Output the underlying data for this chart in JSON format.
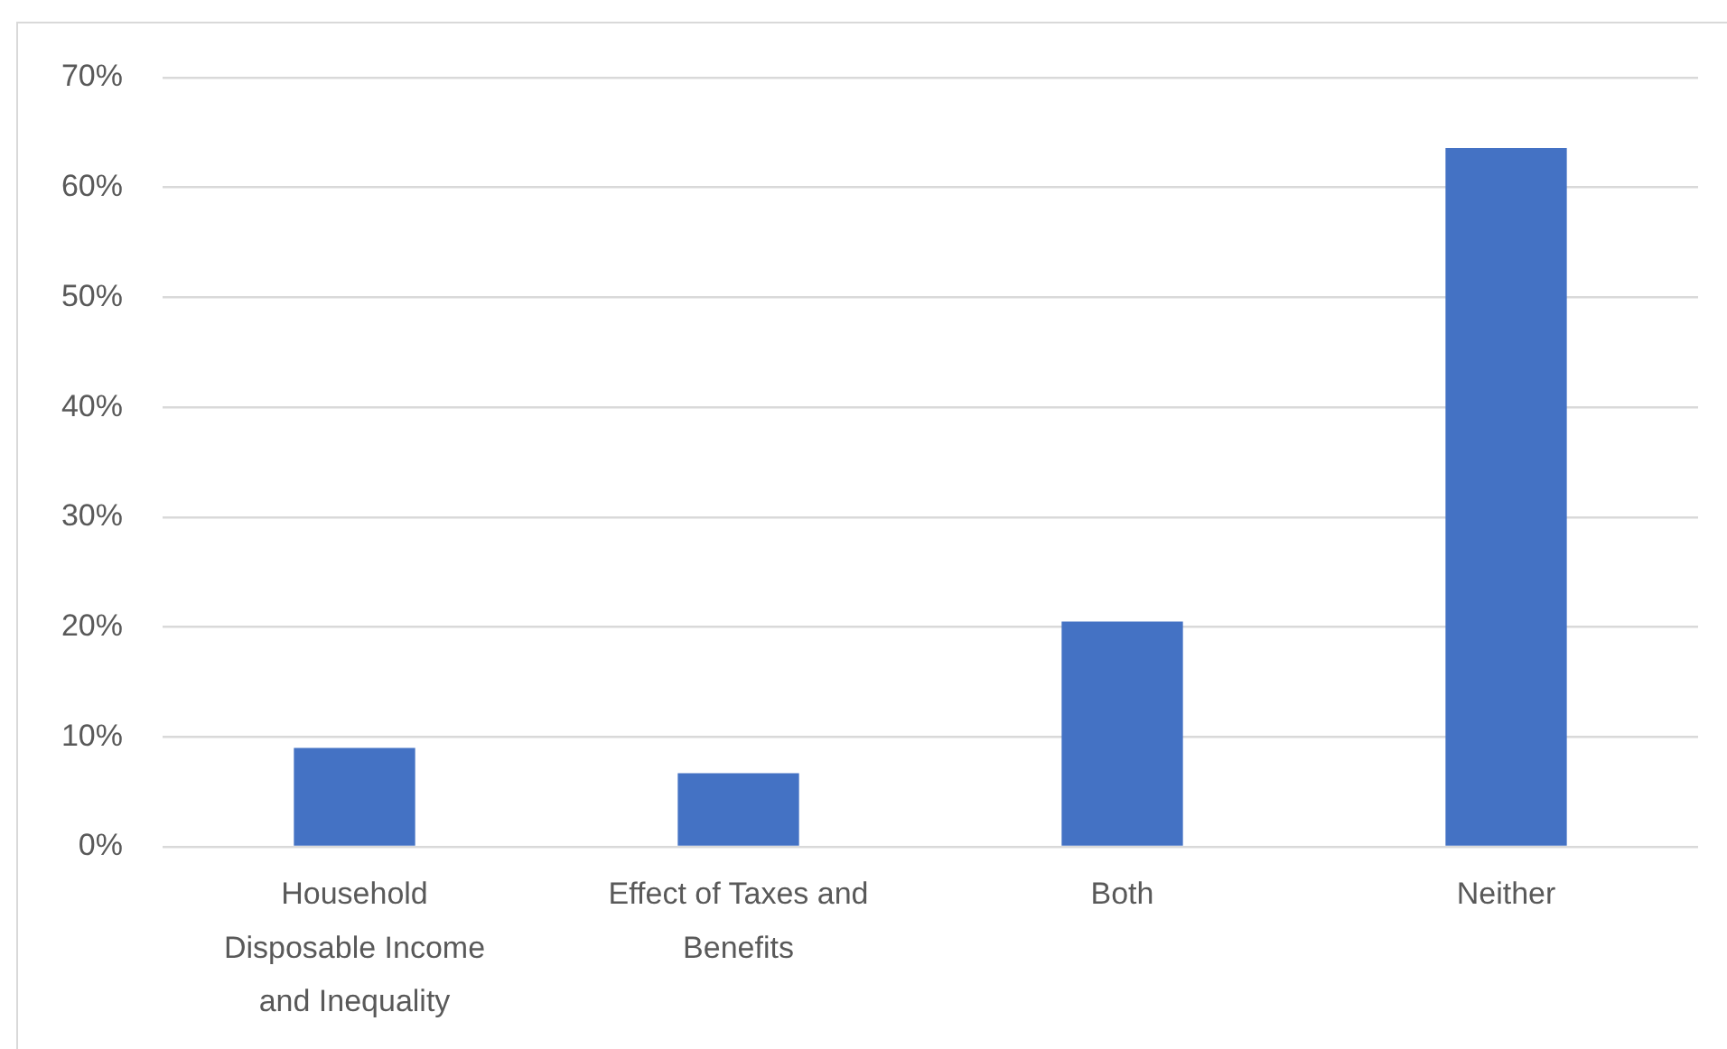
{
  "chart_data": {
    "type": "bar",
    "categories": [
      "Household Disposable Income and Inequality",
      "Effect of Taxes and Benefits",
      "Both",
      "Neither"
    ],
    "values": [
      9.0,
      6.7,
      20.5,
      63.6
    ],
    "color": "#4472c4",
    "ylim": [
      0,
      70
    ],
    "yticks": [
      {
        "value": 0,
        "label": "0%"
      },
      {
        "value": 10,
        "label": "10%"
      },
      {
        "value": 20,
        "label": "20%"
      },
      {
        "value": 30,
        "label": "30%"
      },
      {
        "value": 40,
        "label": "40%"
      },
      {
        "value": 50,
        "label": "50%"
      },
      {
        "value": 60,
        "label": "60%"
      },
      {
        "value": 70,
        "label": "70%"
      }
    ],
    "grid": "y"
  }
}
